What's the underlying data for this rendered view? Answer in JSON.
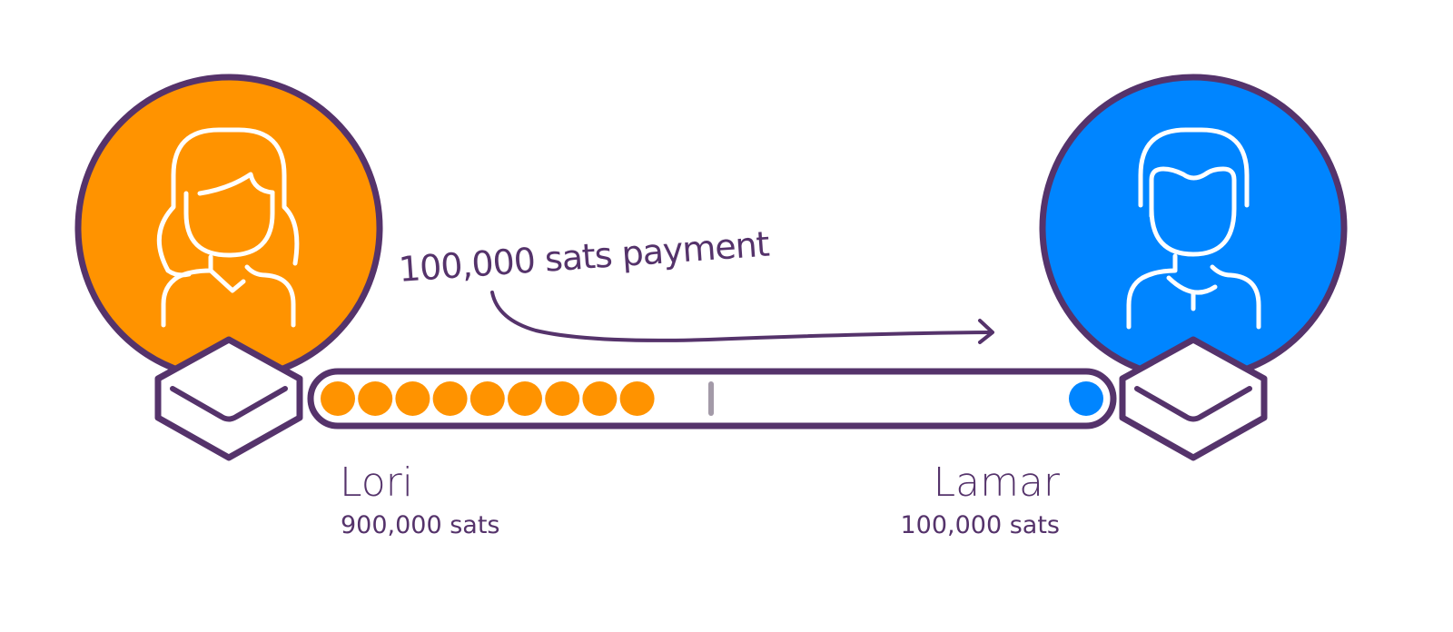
{
  "payment": {
    "label": "100,000 sats payment",
    "direction": "left-to-right"
  },
  "parties": {
    "left": {
      "name": "Lori",
      "balance_label": "900,000 sats",
      "avatar_icon": "woman-user-icon",
      "node_icon": "lightning-node-icon",
      "color": "#ff9300"
    },
    "right": {
      "name": "Lamar",
      "balance_label": "100,000 sats",
      "avatar_icon": "man-user-icon",
      "node_icon": "lightning-node-icon",
      "color": "#0085ff"
    }
  },
  "channel": {
    "left_units": 9,
    "right_units": 1,
    "left_color": "#ff9300",
    "right_color": "#0085ff",
    "outline_color": "#55336b",
    "midpoint_marker_color": "#a39aa8"
  }
}
